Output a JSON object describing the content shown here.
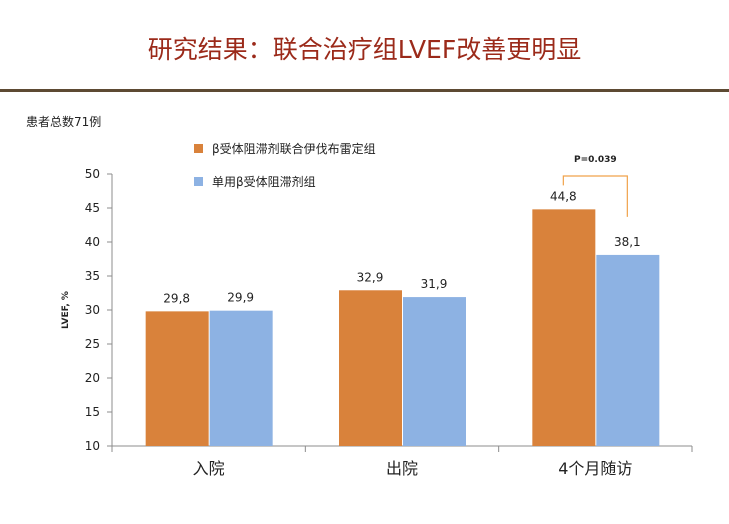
{
  "slide": {
    "title": "研究结果：联合治疗组LVEF改善更明显",
    "note": "患者总数71例"
  },
  "colors": {
    "title": "#9b2a1a",
    "rule": "#5d4a33",
    "series_combo": "#d9823b",
    "series_mono": "#8db2e3",
    "pvalue_bracket": "#f0a24a",
    "axis": "#8c8c8c"
  },
  "chart_data": {
    "type": "bar",
    "title": "",
    "xlabel": "",
    "ylabel": "LVEF, %",
    "ylim": [
      10,
      50
    ],
    "yticks": [
      "10",
      "15",
      "20",
      "25",
      "30",
      "35",
      "40",
      "45",
      "50"
    ],
    "grid": false,
    "legend_position": "top-left",
    "categories": [
      "入院",
      "出院",
      "4个月随访"
    ],
    "series": [
      {
        "name": "β受体阻滞剂联合伊伐布雷定组",
        "color": "#d9823b",
        "values": [
          29.8,
          32.9,
          44.8
        ],
        "labels": [
          "29,8",
          "32,9",
          "44,8"
        ]
      },
      {
        "name": "单用β受体阻滞剂组",
        "color": "#8db2e3",
        "values": [
          29.9,
          31.9,
          38.1
        ],
        "labels": [
          "29,9",
          "31,9",
          "38,1"
        ]
      }
    ],
    "annotations": [
      {
        "text": "P=0.039",
        "category_index": 2,
        "between_series": [
          0,
          1
        ]
      }
    ]
  }
}
